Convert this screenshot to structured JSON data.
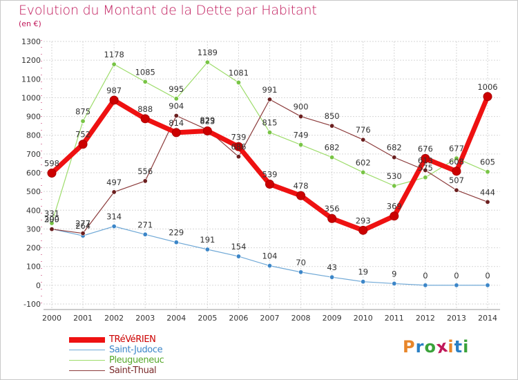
{
  "title": "Evolution du Montant de la Dette par Habitant",
  "unit_label": "(en €)",
  "logo": {
    "text": "Proxiti",
    "colors": [
      "#e8862a",
      "#2a7fc4",
      "#3aa23a",
      "#c0185a",
      "#e8862a",
      "#2a7fc4",
      "#3aa23a"
    ]
  },
  "chart_data": {
    "type": "line",
    "title": "Evolution du Montant de la Dette par Habitant",
    "ylabel": "(en €)",
    "ylim": [
      -100,
      1300
    ],
    "yticks": [
      -100,
      0,
      100,
      200,
      300,
      400,
      500,
      600,
      700,
      800,
      900,
      1000,
      1100,
      1200,
      1300
    ],
    "grid": true,
    "legend_position": "bottom-left",
    "x": [
      "2000",
      "2001",
      "2002",
      "2003",
      "2004",
      "2005",
      "2006",
      "2007",
      "2008",
      "2009",
      "2010",
      "2011",
      "2012",
      "2013",
      "2014"
    ],
    "series": [
      {
        "name": "TRéVéRIEN",
        "color": "#ee1111",
        "marker": "#cc0000",
        "values": [
          598,
          752,
          987,
          888,
          814,
          823,
          739,
          539,
          478,
          356,
          293,
          369,
          676,
          608,
          1006
        ]
      },
      {
        "name": "Saint-Judoce",
        "color": "#6fa8d6",
        "marker": "#3c86c8",
        "values": [
          300,
          264,
          314,
          271,
          229,
          191,
          154,
          104,
          70,
          43,
          19,
          9,
          0,
          0,
          0
        ]
      },
      {
        "name": "Pleugueneuc",
        "color": "#9ddc6a",
        "marker": "#78c445",
        "values": [
          331,
          875,
          1178,
          1085,
          995,
          1189,
          1081,
          815,
          749,
          682,
          602,
          530,
          575,
          677,
          605
        ]
      },
      {
        "name": "Saint-Thual",
        "color": "#8b3a3a",
        "marker": "#6b1f1f",
        "values": [
          299,
          277,
          497,
          556,
          904,
          829,
          686,
          991,
          900,
          850,
          776,
          682,
          613,
          507,
          444
        ]
      }
    ]
  }
}
